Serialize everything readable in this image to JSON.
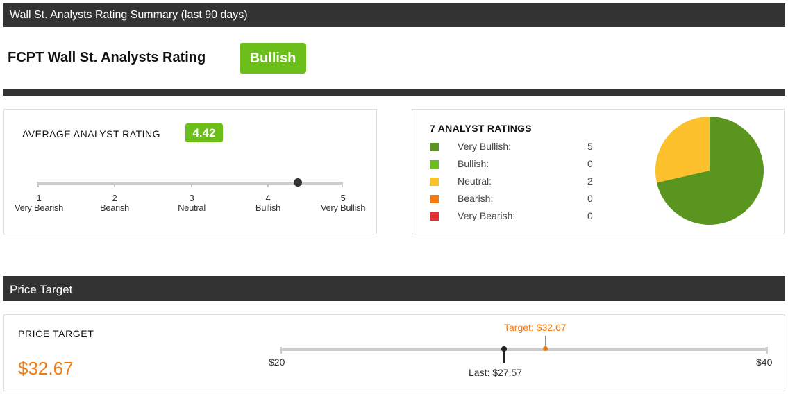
{
  "summary_header": "Wall St. Analysts Rating Summary (last 90 days)",
  "rating_title": "FCPT Wall St. Analysts Rating",
  "rating_badge": "Bullish",
  "accent_color": "#6cbf1b",
  "average": {
    "title": "AVERAGE ANALYST RATING",
    "value": "4.42",
    "scale": [
      {
        "num": "1",
        "label": "Very Bearish"
      },
      {
        "num": "2",
        "label": "Bearish"
      },
      {
        "num": "3",
        "label": "Neutral"
      },
      {
        "num": "4",
        "label": "Bullish"
      },
      {
        "num": "5",
        "label": "Very Bullish"
      }
    ]
  },
  "distribution": {
    "title": "7 ANALYST RATINGS",
    "items": [
      {
        "label": "Very Bullish:",
        "count": 5,
        "color": "#5a961f"
      },
      {
        "label": "Bullish:",
        "count": 0,
        "color": "#6cbf1b"
      },
      {
        "label": "Neutral:",
        "count": 2,
        "color": "#fcc02c"
      },
      {
        "label": "Bearish:",
        "count": 0,
        "color": "#f57a10"
      },
      {
        "label": "Very Bearish:",
        "count": 0,
        "color": "#e03131"
      }
    ]
  },
  "price_header": "Price Target",
  "price_target": {
    "title": "PRICE TARGET",
    "value": "$32.67",
    "min_label": "$20",
    "max_label": "$40",
    "last_label": "Last: $27.57",
    "target_label": "Target: $32.67",
    "target_color": "#f07c12"
  }
}
